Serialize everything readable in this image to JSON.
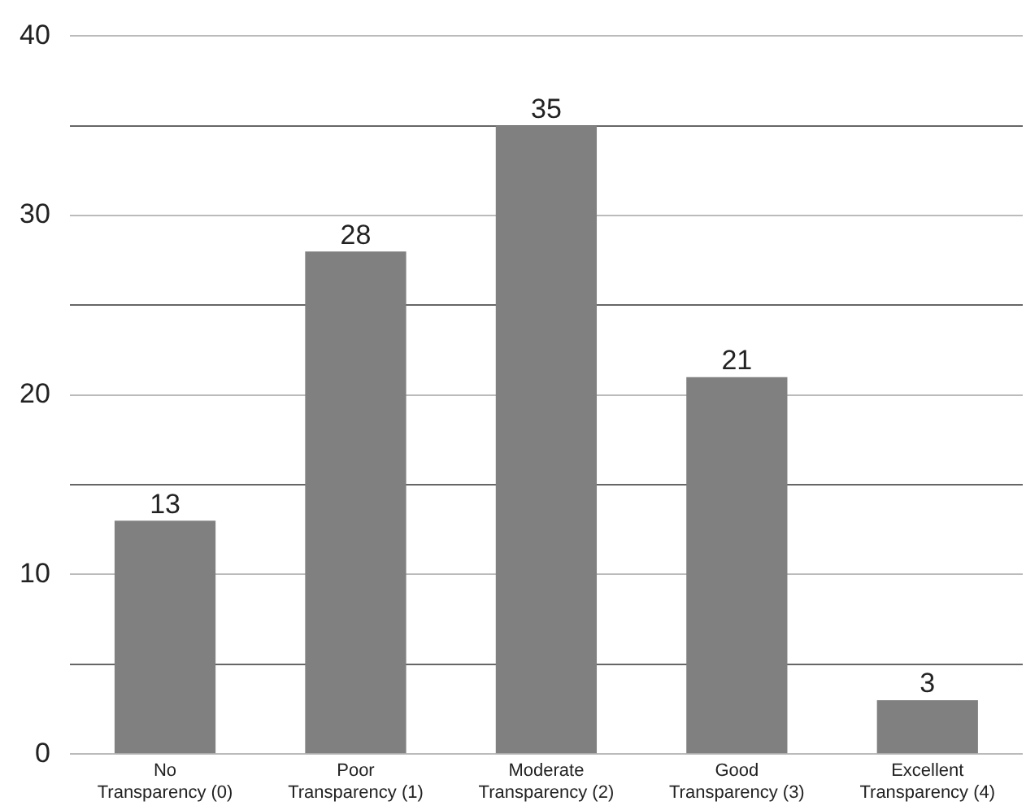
{
  "chart_data": {
    "type": "bar",
    "categories": [
      "No Transparency (0)",
      "Poor Transparency (1)",
      "Moderate Transparency (2)",
      "Good Transparency (3)",
      "Excellent Transparency (4)"
    ],
    "values": [
      13,
      28,
      35,
      21,
      3
    ],
    "color": "#808080",
    "ylim": [
      0,
      40
    ],
    "yticks": [
      0,
      {
        "value": 5,
        "label": null
      },
      10,
      {
        "value": 15,
        "label": null
      },
      20,
      {
        "value": 25,
        "label": null
      },
      30,
      {
        "value": 35,
        "label": null
      },
      40
    ],
    "grid": "y",
    "data_labels": true,
    "legend": false
  }
}
